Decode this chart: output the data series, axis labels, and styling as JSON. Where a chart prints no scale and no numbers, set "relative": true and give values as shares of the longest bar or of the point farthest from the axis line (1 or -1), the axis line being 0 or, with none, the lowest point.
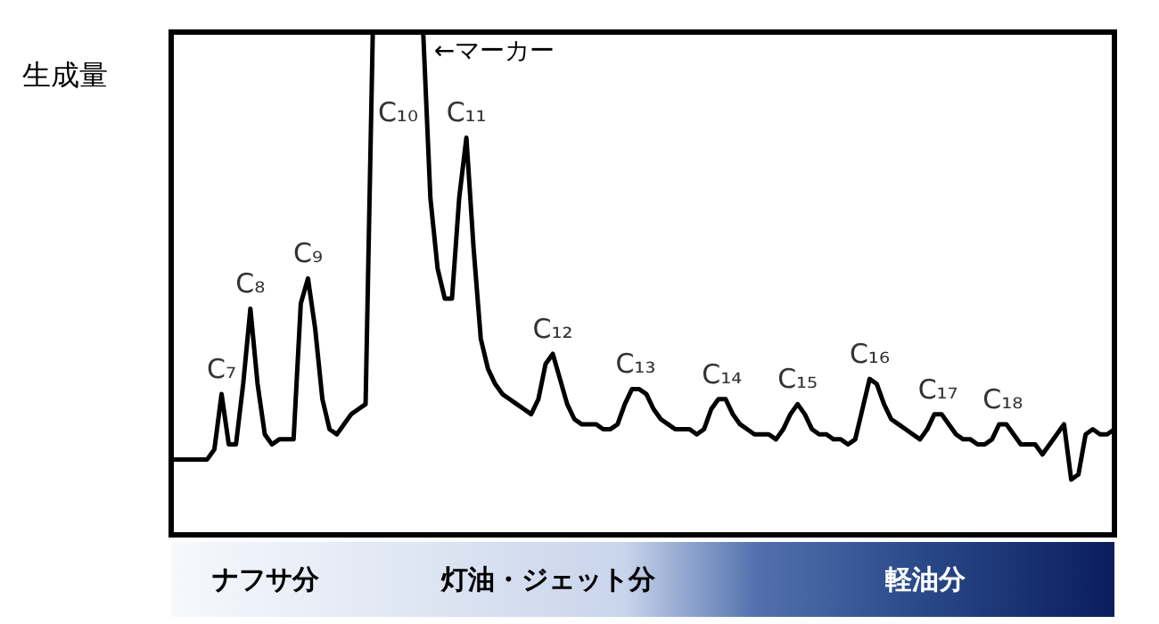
{
  "chart_data": {
    "type": "line",
    "relative": true,
    "ylabel": "生成量",
    "categories": [
      null,
      null,
      null,
      null,
      null,
      null,
      null,
      null,
      null,
      null,
      null,
      null,
      null,
      null,
      null,
      null,
      null,
      null,
      null,
      null,
      null,
      null,
      null,
      null,
      null,
      null,
      null,
      null,
      null,
      null,
      null,
      null,
      null,
      null,
      null,
      null,
      null,
      null,
      null,
      null,
      null,
      null,
      null,
      null,
      null,
      null,
      null,
      null,
      null,
      null,
      null,
      null,
      null,
      null,
      null,
      null,
      null,
      null,
      null,
      null,
      null,
      null,
      null,
      null,
      null,
      null,
      null,
      null,
      null,
      null,
      null,
      null,
      null,
      null,
      null,
      null,
      null,
      null,
      null,
      null,
      null,
      null,
      null,
      null,
      null,
      null,
      null,
      null,
      null,
      null,
      null,
      null,
      null,
      null,
      null,
      null,
      null,
      null,
      null,
      null,
      null,
      null,
      null,
      null,
      null,
      null,
      null,
      null,
      null,
      null,
      null,
      null,
      null,
      null,
      null,
      null,
      null,
      null,
      null,
      null,
      null,
      null,
      null,
      null,
      null,
      null,
      null,
      null,
      null,
      null,
      null,
      null
    ],
    "series": [
      {
        "color": "#000000",
        "values": [
          0.15,
          0.15,
          0.15,
          0.15,
          0.15,
          0.15,
          0.17,
          0.28,
          0.18,
          0.18,
          0.3,
          0.45,
          0.3,
          0.2,
          0.18,
          0.19,
          0.19,
          0.19,
          0.46,
          0.51,
          0.41,
          0.27,
          0.21,
          0.2,
          0.22,
          0.24,
          0.25,
          0.26,
          1,
          1,
          1,
          1,
          1,
          1,
          1,
          1,
          0.67,
          0.53,
          0.47,
          0.47,
          0.67,
          0.79,
          0.57,
          0.39,
          0.33,
          0.3,
          0.28,
          0.27,
          0.26,
          0.25,
          0.24,
          0.27,
          0.34,
          0.36,
          0.31,
          0.26,
          0.23,
          0.22,
          0.22,
          0.22,
          0.21,
          0.21,
          0.22,
          0.26,
          0.29,
          0.29,
          0.28,
          0.25,
          0.23,
          0.22,
          0.21,
          0.21,
          0.21,
          0.2,
          0.21,
          0.25,
          0.27,
          0.27,
          0.24,
          0.22,
          0.21,
          0.2,
          0.2,
          0.2,
          0.19,
          0.21,
          0.24,
          0.26,
          0.24,
          0.21,
          0.2,
          0.2,
          0.19,
          0.19,
          0.18,
          0.19,
          0.25,
          0.31,
          0.3,
          0.26,
          0.23,
          0.22,
          0.21,
          0.2,
          0.19,
          0.21,
          0.24,
          0.24,
          0.22,
          0.2,
          0.19,
          0.19,
          0.18,
          0.18,
          0.19,
          0.22,
          0.22,
          0.2,
          0.18,
          0.18,
          0.18,
          0.16,
          0.18,
          0.2,
          0.22,
          0.11,
          0.12,
          0.2,
          0.21,
          0.2,
          0.2,
          0.21
        ]
      }
    ],
    "annotations": [
      {
        "text": "C₇",
        "y": 0.28
      },
      {
        "text": "C₈",
        "y": 0.45
      },
      {
        "text": "C₉",
        "y": 0.51
      },
      {
        "text": "C₁₀",
        "y": 1
      },
      "←マーカー",
      {
        "text": "C₁₁",
        "y": 0.79
      },
      {
        "text": "C₁₂",
        "y": 0.36
      },
      {
        "text": "C₁₃",
        "y": 0.29
      },
      {
        "text": "C₁₄",
        "y": 0.27
      },
      {
        "text": "C₁₅",
        "y": 0.26
      },
      {
        "text": "C₁₆",
        "y": 0.31
      },
      {
        "text": "C₁₇",
        "y": 0.24
      },
      {
        "text": "C₁₈",
        "y": 0.22
      },
      "ナフサ分",
      "灯油・ジェット分",
      "軽油分"
    ]
  }
}
